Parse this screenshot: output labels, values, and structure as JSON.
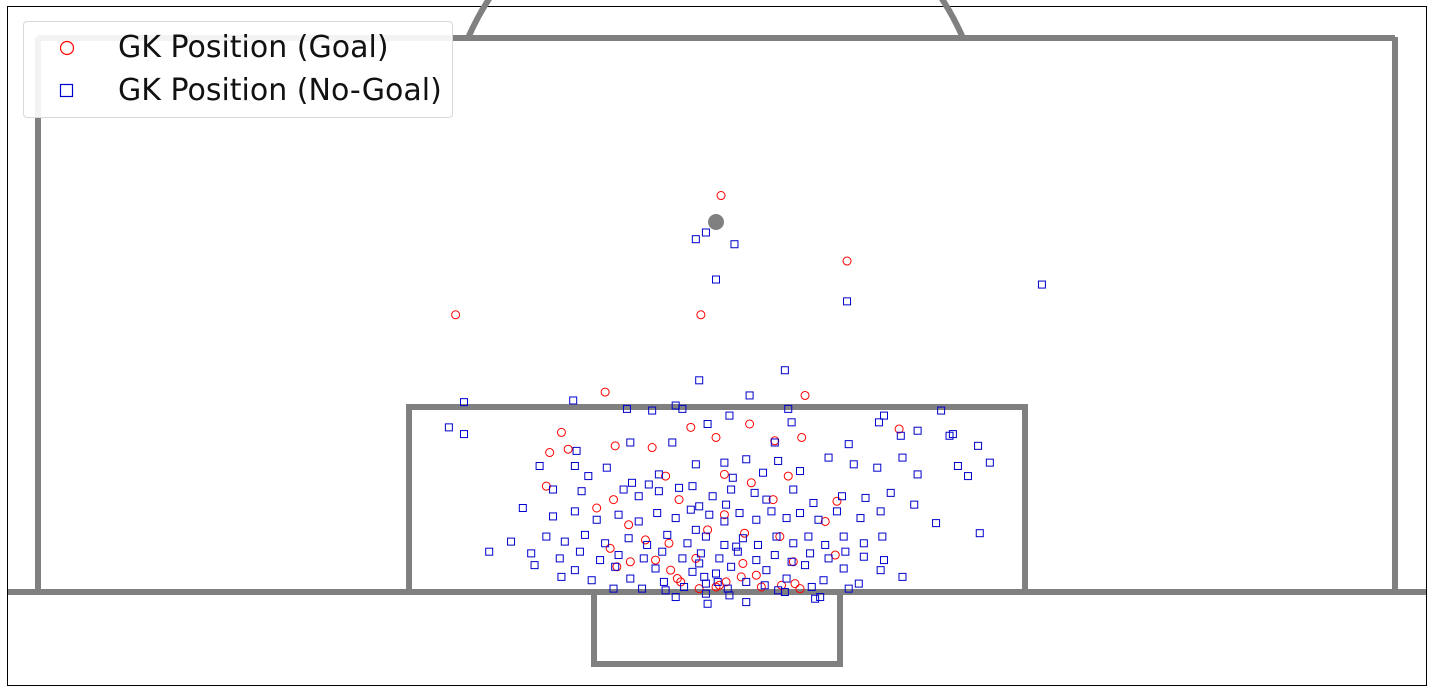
{
  "colors": {
    "pitch_lines": "#808080",
    "goal_marker": "#ff0000",
    "no_goal_marker": "#0000cc",
    "frame": "#000000"
  },
  "legend": {
    "placement": "top-left",
    "items": [
      {
        "label": "GK Position (Goal)",
        "marker": "circle",
        "color": "#ff0000"
      },
      {
        "label": "GK Position (No-Goal)",
        "marker": "square",
        "color": "#0000cc"
      }
    ]
  },
  "chart_data": {
    "type": "scatter",
    "title": "",
    "xlabel": "",
    "ylabel": "",
    "axes_visible": false,
    "grid": false,
    "xlim": [
      -40,
      40
    ],
    "ylim": [
      -4,
      37
    ],
    "pitch": "half pitch drawn in grey: penalty area, goal area, penalty spot and arc, goal line at y=0",
    "series": [
      {
        "name": "GK Position (Goal)",
        "marker": "circle",
        "color": "#ff0000",
        "points": [
          [
            0.3,
            23.6
          ],
          [
            -15.5,
            16.5
          ],
          [
            -0.9,
            16.5
          ],
          [
            7.8,
            19.7
          ],
          [
            -6.6,
            11.9
          ],
          [
            5.3,
            11.7
          ],
          [
            -9.2,
            9.5
          ],
          [
            -9.9,
            8.3
          ],
          [
            -8.8,
            8.5
          ],
          [
            -10.1,
            6.3
          ],
          [
            -6.0,
            8.7
          ],
          [
            -3.8,
            8.6
          ],
          [
            -1.5,
            9.8
          ],
          [
            0.0,
            9.2
          ],
          [
            2.0,
            10.0
          ],
          [
            3.5,
            9.0
          ],
          [
            5.1,
            9.2
          ],
          [
            10.9,
            9.7
          ],
          [
            -3.0,
            6.9
          ],
          [
            0.5,
            7.0
          ],
          [
            2.1,
            6.5
          ],
          [
            4.3,
            6.9
          ],
          [
            -6.1,
            5.5
          ],
          [
            -7.1,
            5.0
          ],
          [
            -5.2,
            4.0
          ],
          [
            -2.2,
            5.5
          ],
          [
            0.5,
            4.6
          ],
          [
            3.4,
            5.5
          ],
          [
            6.5,
            4.2
          ],
          [
            7.2,
            5.4
          ],
          [
            -4.2,
            3.1
          ],
          [
            -2.8,
            2.9
          ],
          [
            -0.5,
            3.7
          ],
          [
            1.7,
            3.5
          ],
          [
            3.8,
            3.3
          ],
          [
            -6.3,
            2.6
          ],
          [
            -5.1,
            1.8
          ],
          [
            -3.6,
            1.9
          ],
          [
            -1.2,
            2.0
          ],
          [
            1.6,
            1.7
          ],
          [
            4.6,
            1.8
          ],
          [
            7.1,
            2.2
          ],
          [
            -5.9,
            1.5
          ],
          [
            -2.7,
            1.3
          ],
          [
            2.4,
            1.0
          ],
          [
            4.7,
            0.5
          ],
          [
            -2.3,
            0.8
          ],
          [
            0.6,
            0.6
          ],
          [
            1.5,
            0.9
          ],
          [
            3.9,
            0.4
          ],
          [
            -2.1,
            0.6
          ],
          [
            0.2,
            0.4
          ],
          [
            5.0,
            0.2
          ],
          [
            2.7,
            0.3
          ],
          [
            -1.0,
            0.2
          ],
          [
            0.0,
            0.3
          ]
        ]
      },
      {
        "name": "GK Position (No-Goal)",
        "marker": "square",
        "color": "#0000cc",
        "points": [
          [
            -1.2,
            21.0
          ],
          [
            -0.6,
            21.4
          ],
          [
            1.1,
            20.7
          ],
          [
            0.0,
            18.6
          ],
          [
            7.8,
            17.3
          ],
          [
            19.4,
            18.3
          ],
          [
            4.1,
            13.2
          ],
          [
            -1.0,
            12.6
          ],
          [
            2.0,
            11.7
          ],
          [
            -15.0,
            11.3
          ],
          [
            -8.5,
            11.4
          ],
          [
            -5.3,
            10.9
          ],
          [
            -3.8,
            10.8
          ],
          [
            -2.0,
            10.9
          ],
          [
            4.3,
            10.9
          ],
          [
            10.0,
            10.5
          ],
          [
            13.4,
            10.8
          ],
          [
            -15.9,
            9.8
          ],
          [
            -15.0,
            9.4
          ],
          [
            -0.5,
            10.0
          ],
          [
            0.8,
            10.5
          ],
          [
            9.7,
            10.1
          ],
          [
            -8.3,
            8.4
          ],
          [
            -5.1,
            8.9
          ],
          [
            -2.6,
            8.9
          ],
          [
            3.5,
            8.9
          ],
          [
            7.9,
            8.8
          ],
          [
            11.0,
            9.3
          ],
          [
            12.0,
            9.6
          ],
          [
            13.9,
            9.3
          ],
          [
            14.1,
            9.4
          ],
          [
            15.6,
            8.7
          ],
          [
            -10.5,
            7.5
          ],
          [
            -8.4,
            7.5
          ],
          [
            -7.6,
            6.9
          ],
          [
            -6.5,
            7.4
          ],
          [
            -5.0,
            6.5
          ],
          [
            -3.4,
            7.0
          ],
          [
            -1.2,
            7.6
          ],
          [
            0.5,
            7.7
          ],
          [
            1.8,
            7.9
          ],
          [
            3.7,
            7.8
          ],
          [
            5.0,
            7.2
          ],
          [
            6.7,
            8.0
          ],
          [
            8.2,
            7.6
          ],
          [
            9.6,
            7.4
          ],
          [
            12.0,
            7.0
          ],
          [
            11.1,
            8.0
          ],
          [
            14.4,
            7.5
          ],
          [
            15.0,
            6.9
          ],
          [
            16.3,
            7.7
          ],
          [
            -9.7,
            6.1
          ],
          [
            -8.0,
            6.0
          ],
          [
            -5.5,
            6.1
          ],
          [
            -4.6,
            5.7
          ],
          [
            -3.4,
            6.0
          ],
          [
            -2.2,
            6.2
          ],
          [
            -1.4,
            6.3
          ],
          [
            -0.2,
            5.7
          ],
          [
            0.9,
            6.1
          ],
          [
            2.3,
            5.9
          ],
          [
            3.0,
            5.5
          ],
          [
            4.6,
            6.1
          ],
          [
            5.8,
            5.3
          ],
          [
            7.5,
            5.7
          ],
          [
            8.9,
            5.6
          ],
          [
            10.4,
            5.9
          ],
          [
            11.8,
            5.2
          ],
          [
            -11.5,
            5.0
          ],
          [
            -9.7,
            4.5
          ],
          [
            -8.4,
            4.8
          ],
          [
            -7.1,
            4.3
          ],
          [
            -5.8,
            4.6
          ],
          [
            -4.6,
            4.2
          ],
          [
            -3.5,
            4.7
          ],
          [
            -2.4,
            4.4
          ],
          [
            -1.5,
            4.9
          ],
          [
            -0.4,
            4.6
          ],
          [
            0.5,
            4.2
          ],
          [
            1.4,
            4.7
          ],
          [
            2.4,
            4.3
          ],
          [
            3.3,
            4.8
          ],
          [
            4.2,
            4.4
          ],
          [
            5.0,
            4.7
          ],
          [
            6.1,
            4.3
          ],
          [
            7.2,
            4.8
          ],
          [
            8.6,
            4.4
          ],
          [
            9.8,
            4.8
          ],
          [
            13.1,
            4.1
          ],
          [
            15.7,
            3.5
          ],
          [
            -12.2,
            3.0
          ],
          [
            -10.1,
            3.3
          ],
          [
            -9.0,
            3.0
          ],
          [
            -7.8,
            3.4
          ],
          [
            -6.6,
            2.9
          ],
          [
            -5.2,
            3.2
          ],
          [
            -4.1,
            2.8
          ],
          [
            -2.9,
            3.4
          ],
          [
            -1.7,
            2.9
          ],
          [
            -0.6,
            3.3
          ],
          [
            0.5,
            2.8
          ],
          [
            1.6,
            3.2
          ],
          [
            2.5,
            2.8
          ],
          [
            3.6,
            3.3
          ],
          [
            4.6,
            2.9
          ],
          [
            5.5,
            3.3
          ],
          [
            6.5,
            2.8
          ],
          [
            7.6,
            3.3
          ],
          [
            8.8,
            2.9
          ],
          [
            9.9,
            3.3
          ],
          [
            -13.5,
            2.4
          ],
          [
            -11.0,
            2.3
          ],
          [
            -9.3,
            2.0
          ],
          [
            -8.1,
            2.4
          ],
          [
            -6.9,
            1.9
          ],
          [
            -5.8,
            2.2
          ],
          [
            -4.3,
            2.0
          ],
          [
            -3.2,
            2.4
          ],
          [
            -2.0,
            2.0
          ],
          [
            -0.9,
            2.3
          ],
          [
            0.2,
            2.0
          ],
          [
            1.3,
            2.4
          ],
          [
            2.4,
            1.9
          ],
          [
            3.5,
            2.2
          ],
          [
            4.5,
            1.8
          ],
          [
            5.6,
            2.3
          ],
          [
            6.7,
            2.0
          ],
          [
            7.7,
            2.4
          ],
          [
            8.8,
            2.1
          ],
          [
            10.0,
            1.9
          ],
          [
            -10.8,
            1.6
          ],
          [
            -8.4,
            1.3
          ],
          [
            -6.0,
            1.5
          ],
          [
            -3.6,
            1.4
          ],
          [
            -1.4,
            1.2
          ],
          [
            0.9,
            1.5
          ],
          [
            3.0,
            1.3
          ],
          [
            5.3,
            1.6
          ],
          [
            7.6,
            1.4
          ],
          [
            9.8,
            1.3
          ],
          [
            -9.2,
            0.9
          ],
          [
            -7.4,
            0.7
          ],
          [
            -5.1,
            0.8
          ],
          [
            -3.1,
            0.6
          ],
          [
            -0.7,
            0.9
          ],
          [
            1.8,
            0.6
          ],
          [
            4.2,
            0.8
          ],
          [
            6.4,
            0.7
          ],
          [
            8.5,
            0.5
          ],
          [
            11.1,
            0.9
          ],
          [
            -4.4,
            0.2
          ],
          [
            -1.9,
            0.3
          ],
          [
            0.7,
            0.2
          ],
          [
            2.9,
            0.4
          ],
          [
            5.7,
            0.3
          ],
          [
            7.9,
            0.2
          ],
          [
            -6.1,
            0.2
          ],
          [
            -3.0,
            0.1
          ],
          [
            0.1,
            0.6
          ],
          [
            3.7,
            0.1
          ],
          [
            6.2,
            -0.3
          ],
          [
            0.8,
            -0.2
          ],
          [
            -0.6,
            -0.1
          ],
          [
            5.9,
            -0.4
          ],
          [
            4.1,
            0.0
          ],
          [
            -0.5,
            -0.7
          ],
          [
            1.8,
            -0.6
          ],
          [
            -2.4,
            -0.3
          ],
          [
            -0.6,
            0.5
          ],
          [
            0.0,
            1.1
          ],
          [
            -1.0,
            1.7
          ],
          [
            1.2,
            2.7
          ],
          [
            -1.2,
            3.7
          ],
          [
            0.6,
            5.2
          ],
          [
            -1.0,
            5.1
          ],
          [
            1.0,
            6.8
          ],
          [
            -4.0,
            6.4
          ],
          [
            2.8,
            7.1
          ],
          [
            4.5,
            10.1
          ],
          [
            -2.4,
            11.1
          ]
        ]
      }
    ]
  }
}
